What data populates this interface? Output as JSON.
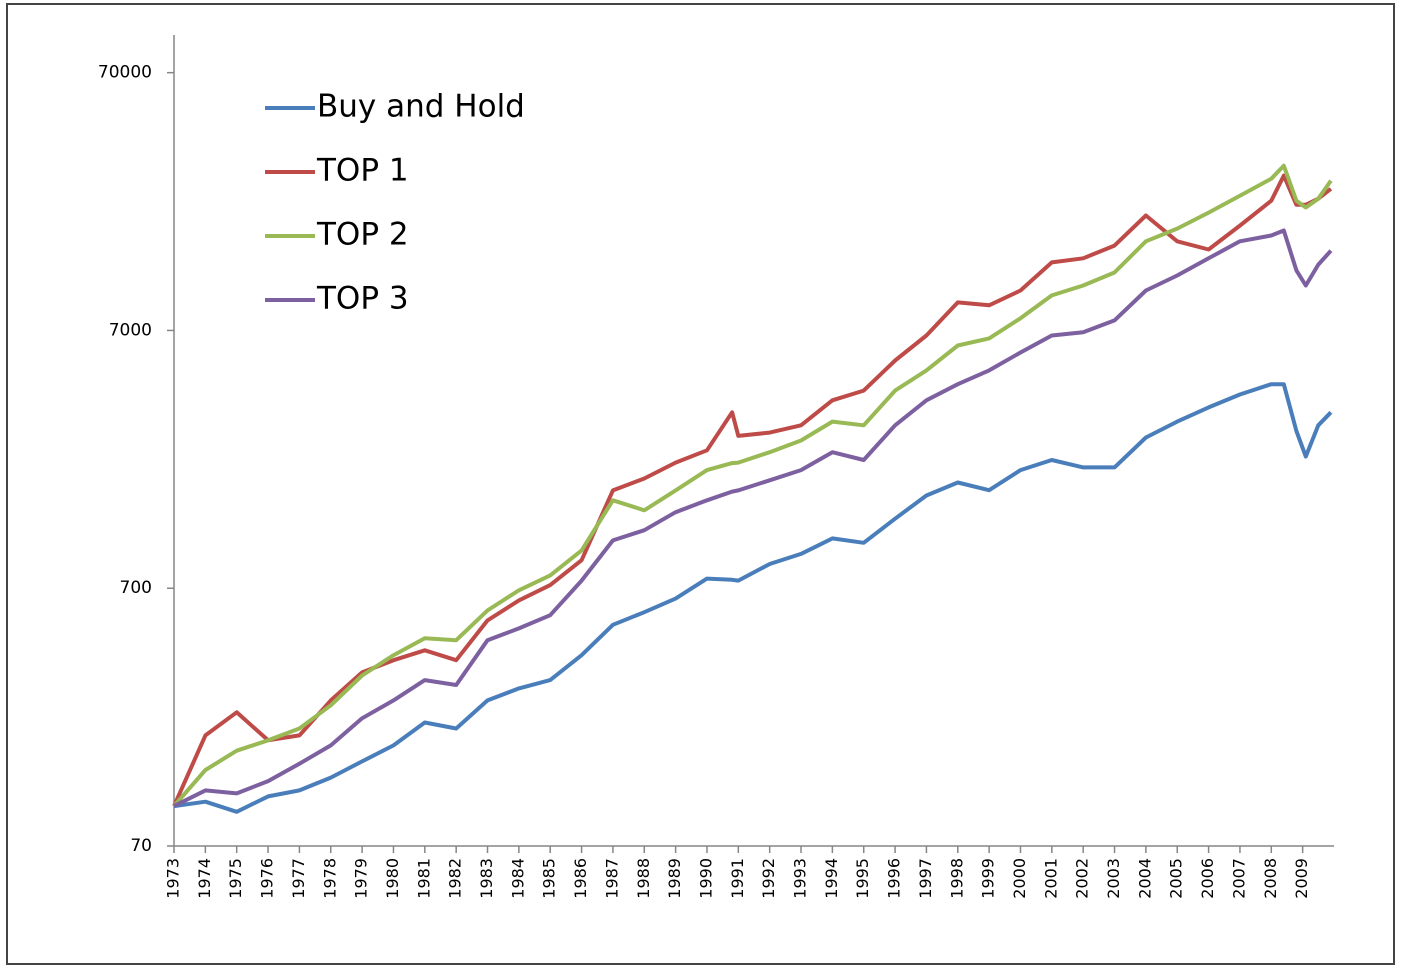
{
  "chart_data": {
    "type": "line",
    "x": [
      1973,
      1974,
      1975,
      1976,
      1977,
      1978,
      1979,
      1980,
      1981,
      1982,
      1983,
      1984,
      1985,
      1986,
      1987,
      1988,
      1989,
      1990,
      1990.8,
      1991,
      1992,
      1993,
      1994,
      1995,
      1996,
      1997,
      1998,
      1999,
      2000,
      2001,
      2002,
      2003,
      2004,
      2005,
      2006,
      2007,
      2008,
      2008.4,
      2008.8,
      2009.1,
      2009.5,
      2009.9
    ],
    "series": [
      {
        "name": "Buy and Hold",
        "color": "#4a7ebb",
        "values": [
          100,
          104,
          95,
          109,
          115,
          129,
          149,
          172,
          211,
          200,
          257,
          286,
          308,
          385,
          505,
          565,
          638,
          763,
          755,
          749,
          869,
          951,
          1092,
          1050,
          1303,
          1602,
          1800,
          1680,
          2010,
          2200,
          2060,
          2060,
          2690,
          3100,
          3520,
          3950,
          4330,
          4330,
          2850,
          2270,
          3000,
          3370
        ]
      },
      {
        "name": "TOP 1",
        "color": "#be4b48",
        "values": [
          100,
          188,
          231,
          180,
          188,
          257,
          330,
          368,
          402,
          368,
          525,
          628,
          720,
          899,
          1677,
          1866,
          2150,
          2400,
          3370,
          2730,
          2810,
          3000,
          3750,
          4090,
          5350,
          6690,
          8990,
          8760,
          10000,
          12850,
          13340,
          14940,
          19550,
          15520,
          14420,
          17860,
          22310,
          27900,
          21500,
          21500,
          22700,
          24800
        ]
      },
      {
        "name": "TOP 2",
        "color": "#98b954",
        "values": [
          100,
          138,
          164,
          180,
          200,
          246,
          321,
          385,
          448,
          440,
          574,
          687,
          785,
          981,
          1535,
          1404,
          1677,
          2010,
          2140,
          2150,
          2360,
          2620,
          3100,
          3000,
          4090,
          4900,
          6120,
          6520,
          7800,
          9570,
          10460,
          11750,
          15520,
          17390,
          20050,
          23310,
          27150,
          30500,
          22310,
          21000,
          22700,
          26700
        ]
      },
      {
        "name": "TOP 3",
        "color": "#7d60a0",
        "values": [
          100,
          115,
          112,
          125,
          146,
          172,
          219,
          257,
          308,
          295,
          440,
          489,
          550,
          749,
          1073,
          1175,
          1380,
          1535,
          1660,
          1677,
          1835,
          2010,
          2360,
          2200,
          3000,
          3750,
          4330,
          4900,
          5750,
          6690,
          6890,
          7660,
          10000,
          11440,
          13340,
          15520,
          16340,
          17100,
          11970,
          10460,
          12600,
          14270
        ]
      }
    ],
    "xlim": [
      1973,
      2010
    ],
    "xticks": [
      1973,
      1974,
      1975,
      1976,
      1977,
      1978,
      1979,
      1980,
      1981,
      1982,
      1983,
      1984,
      1985,
      1986,
      1987,
      1988,
      1989,
      1990,
      1991,
      1992,
      1993,
      1994,
      1995,
      1996,
      1997,
      1998,
      1999,
      2000,
      2001,
      2002,
      2003,
      2004,
      2005,
      2006,
      2007,
      2008,
      2009
    ],
    "ylim": [
      70,
      98000
    ],
    "yticks": [
      70,
      700,
      7000,
      70000
    ],
    "yscale": "log",
    "legend": "upper-left"
  }
}
